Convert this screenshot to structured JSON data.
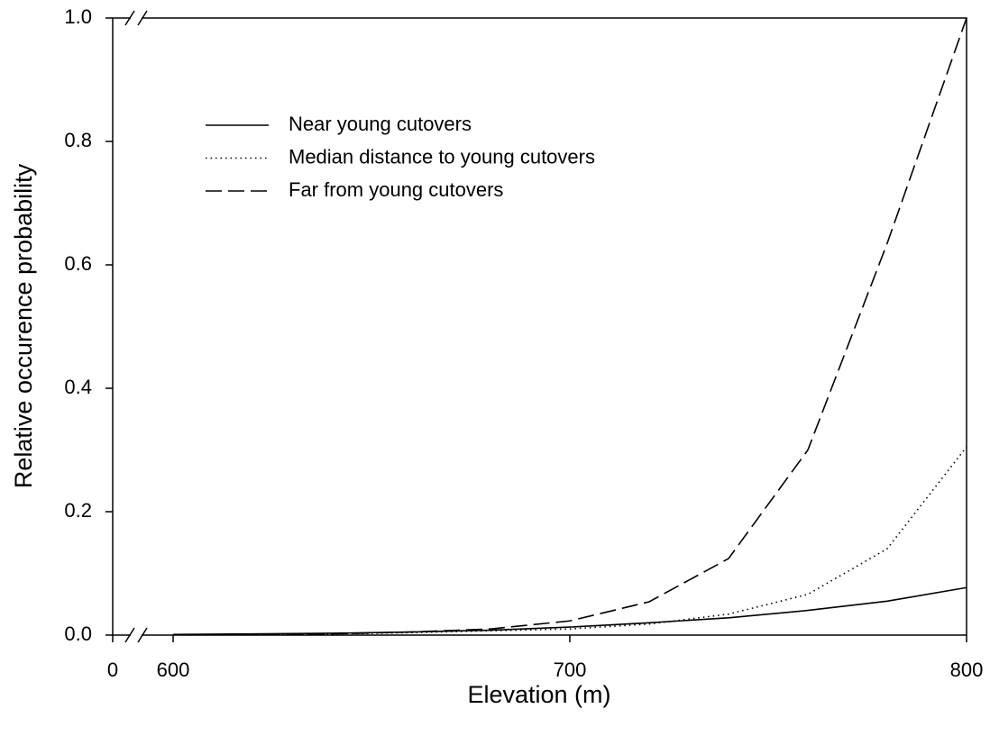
{
  "chart_data": {
    "type": "line",
    "x_label": "Elevation (m)",
    "y_label": "Relative occurence probability",
    "x": [
      600,
      620,
      640,
      660,
      680,
      700,
      720,
      740,
      760,
      780,
      800
    ],
    "series": [
      {
        "name": "Near young cutovers",
        "color": "#000000",
        "style": "solid",
        "values": [
          0.001,
          0.002,
          0.003,
          0.005,
          0.008,
          0.013,
          0.02,
          0.028,
          0.04,
          0.055,
          0.077
        ]
      },
      {
        "name": "Median distance to young cutovers",
        "color": "#000000",
        "style": "dotted",
        "values": [
          0.0005,
          0.001,
          0.002,
          0.004,
          0.007,
          0.01,
          0.018,
          0.034,
          0.066,
          0.14,
          0.305
        ]
      },
      {
        "name": "Far from young cutovers",
        "color": "#000000",
        "style": "dashed",
        "values": [
          0.0005,
          0.001,
          0.002,
          0.005,
          0.01,
          0.023,
          0.054,
          0.124,
          0.3,
          0.635,
          1.0
        ]
      }
    ],
    "xlim": [
      0,
      800
    ],
    "x_break": [
      0,
      600
    ],
    "xticks": [
      0,
      600,
      700,
      800
    ],
    "ylim": [
      0,
      1
    ],
    "yticks": [
      {
        "value": 0,
        "label": "0.0"
      },
      {
        "value": 0.2,
        "label": "0.2"
      },
      {
        "value": 0.4,
        "label": "0.4"
      },
      {
        "value": 0.6,
        "label": "0.6"
      },
      {
        "value": 0.8,
        "label": "0.8"
      },
      {
        "value": 1,
        "label": "1.0"
      }
    ],
    "legend": "upper left"
  }
}
